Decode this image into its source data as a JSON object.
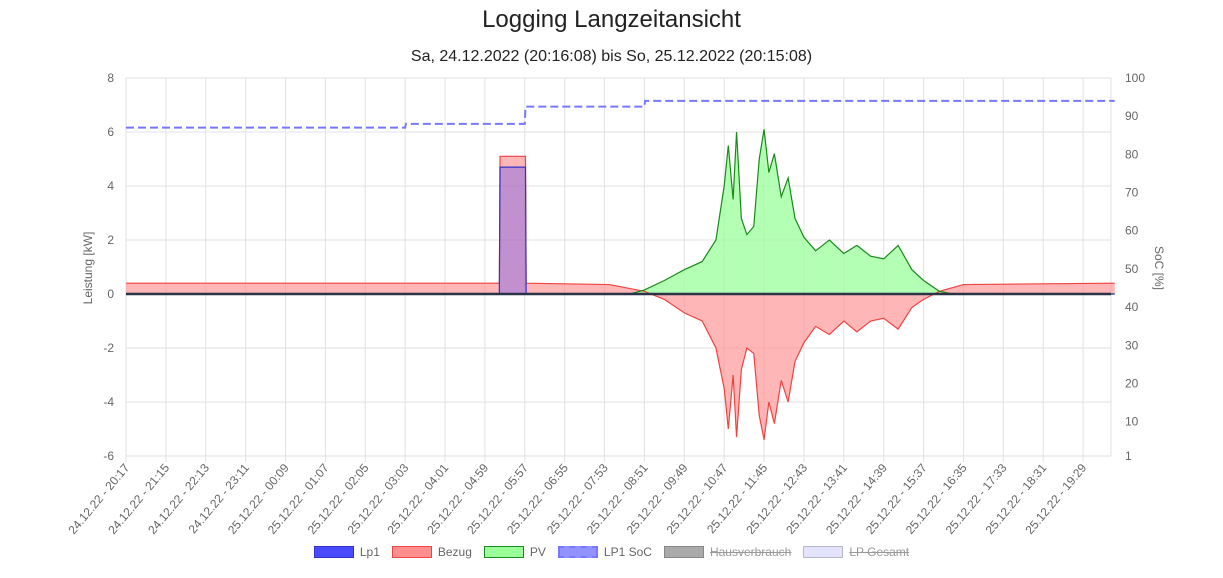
{
  "chart_data": {
    "type": "line",
    "title": "Logging Langzeitansicht",
    "subtitle": "Sa, 24.12.2022 (20:16:08) bis So, 25.12.2022 (20:15:08)",
    "y_axis_left": {
      "label": "Leistung [kW]",
      "range": [
        -6,
        8
      ],
      "ticks": [
        8,
        6,
        4,
        2,
        0,
        -2,
        -4,
        -6
      ]
    },
    "y_axis_right": {
      "label": "SoC [%]",
      "range": [
        1,
        100
      ],
      "ticks": [
        100,
        90,
        80,
        70,
        60,
        50,
        40,
        30,
        20,
        10,
        1
      ]
    },
    "x_axis": {
      "type": "time",
      "tick_labels": [
        "24.12.22 - 20:17",
        "24.12.22 - 21:15",
        "24.12.22 - 22:13",
        "24.12.22 - 23:11",
        "25.12.22 - 00:09",
        "25.12.22 - 01:07",
        "25.12.22 - 02:05",
        "25.12.22 - 03:03",
        "25.12.22 - 04:01",
        "25.12.22 - 04:59",
        "25.12.22 - 05:57",
        "25.12.22 - 06:55",
        "25.12.22 - 07:53",
        "25.12.22 - 08:51",
        "25.12.22 - 09:49",
        "25.12.22 - 10:47",
        "25.12.22 - 11:45",
        "25.12.22 - 12:43",
        "25.12.22 - 13:41",
        "25.12.22 - 14:39",
        "25.12.22 - 15:37",
        "25.12.22 - 16:35",
        "25.12.22 - 17:33",
        "25.12.22 - 18:31",
        "25.12.22 - 19:29"
      ]
    },
    "grid": true,
    "legend_position": "bottom",
    "series": [
      {
        "name": "Lp1",
        "axis": "left",
        "color": "#4a4aff",
        "type": "area",
        "points": [
          [
            "24.12.22 - 20:17",
            0
          ],
          [
            "25.12.22 - 05:20",
            0
          ],
          [
            "25.12.22 - 05:21",
            4.7
          ],
          [
            "25.12.22 - 05:58",
            4.7
          ],
          [
            "25.12.22 - 05:59",
            0
          ],
          [
            "25.12.22 - 20:15",
            0
          ]
        ]
      },
      {
        "name": "Bezug",
        "axis": "left",
        "color": "#ff8f8f",
        "type": "area",
        "points": [
          [
            "24.12.22 - 20:17",
            0.4
          ],
          [
            "25.12.22 - 05:20",
            0.4
          ],
          [
            "25.12.22 - 05:21",
            5.1
          ],
          [
            "25.12.22 - 05:58",
            5.1
          ],
          [
            "25.12.22 - 05:59",
            0.4
          ],
          [
            "25.12.22 - 08:00",
            0.35
          ],
          [
            "25.12.22 - 08:51",
            0.1
          ],
          [
            "25.12.22 - 09:20",
            -0.2
          ],
          [
            "25.12.22 - 09:49",
            -0.7
          ],
          [
            "25.12.22 - 10:15",
            -1.0
          ],
          [
            "25.12.22 - 10:35",
            -2.0
          ],
          [
            "25.12.22 - 10:47",
            -3.5
          ],
          [
            "25.12.22 - 10:53",
            -5.0
          ],
          [
            "25.12.22 - 11:00",
            -3.0
          ],
          [
            "25.12.22 - 11:05",
            -5.3
          ],
          [
            "25.12.22 - 11:12",
            -2.8
          ],
          [
            "25.12.22 - 11:20",
            -2.0
          ],
          [
            "25.12.22 - 11:30",
            -2.2
          ],
          [
            "25.12.22 - 11:38",
            -4.5
          ],
          [
            "25.12.22 - 11:45",
            -5.4
          ],
          [
            "25.12.22 - 11:52",
            -4.0
          ],
          [
            "25.12.22 - 12:00",
            -4.8
          ],
          [
            "25.12.22 - 12:10",
            -3.2
          ],
          [
            "25.12.22 - 12:20",
            -4.0
          ],
          [
            "25.12.22 - 12:30",
            -2.5
          ],
          [
            "25.12.22 - 12:43",
            -1.8
          ],
          [
            "25.12.22 - 13:00",
            -1.2
          ],
          [
            "25.12.22 - 13:20",
            -1.5
          ],
          [
            "25.12.22 - 13:41",
            -1.0
          ],
          [
            "25.12.22 - 14:00",
            -1.4
          ],
          [
            "25.12.22 - 14:20",
            -1.0
          ],
          [
            "25.12.22 - 14:39",
            -0.9
          ],
          [
            "25.12.22 - 15:00",
            -1.3
          ],
          [
            "25.12.22 - 15:20",
            -0.5
          ],
          [
            "25.12.22 - 15:37",
            -0.2
          ],
          [
            "25.12.22 - 16:00",
            0.1
          ],
          [
            "25.12.22 - 16:35",
            0.35
          ],
          [
            "25.12.22 - 20:15",
            0.4
          ]
        ]
      },
      {
        "name": "PV",
        "axis": "left",
        "color": "#99ff99",
        "type": "area",
        "points": [
          [
            "24.12.22 - 20:17",
            0
          ],
          [
            "25.12.22 - 08:30",
            0
          ],
          [
            "25.12.22 - 08:51",
            0.15
          ],
          [
            "25.12.22 - 09:20",
            0.5
          ],
          [
            "25.12.22 - 09:49",
            0.9
          ],
          [
            "25.12.22 - 10:15",
            1.2
          ],
          [
            "25.12.22 - 10:35",
            2.0
          ],
          [
            "25.12.22 - 10:47",
            4.0
          ],
          [
            "25.12.22 - 10:53",
            5.5
          ],
          [
            "25.12.22 - 11:00",
            3.5
          ],
          [
            "25.12.22 - 11:05",
            6.0
          ],
          [
            "25.12.22 - 11:12",
            2.8
          ],
          [
            "25.12.22 - 11:20",
            2.2
          ],
          [
            "25.12.22 - 11:30",
            2.5
          ],
          [
            "25.12.22 - 11:38",
            5.0
          ],
          [
            "25.12.22 - 11:45",
            6.1
          ],
          [
            "25.12.22 - 11:52",
            4.5
          ],
          [
            "25.12.22 - 12:00",
            5.2
          ],
          [
            "25.12.22 - 12:10",
            3.6
          ],
          [
            "25.12.22 - 12:20",
            4.3
          ],
          [
            "25.12.22 - 12:30",
            2.8
          ],
          [
            "25.12.22 - 12:43",
            2.1
          ],
          [
            "25.12.22 - 13:00",
            1.6
          ],
          [
            "25.12.22 - 13:20",
            2.0
          ],
          [
            "25.12.22 - 13:41",
            1.5
          ],
          [
            "25.12.22 - 14:00",
            1.8
          ],
          [
            "25.12.22 - 14:20",
            1.4
          ],
          [
            "25.12.22 - 14:39",
            1.3
          ],
          [
            "25.12.22 - 15:00",
            1.8
          ],
          [
            "25.12.22 - 15:20",
            0.9
          ],
          [
            "25.12.22 - 15:37",
            0.5
          ],
          [
            "25.12.22 - 16:00",
            0.1
          ],
          [
            "25.12.22 - 16:20",
            0
          ],
          [
            "25.12.22 - 20:15",
            0
          ]
        ]
      },
      {
        "name": "LP1 SoC",
        "axis": "right",
        "color": "#7777ff",
        "type": "line",
        "dashed": true,
        "points": [
          [
            "24.12.22 - 20:17",
            87
          ],
          [
            "25.12.22 - 03:03",
            87
          ],
          [
            "25.12.22 - 03:04",
            88
          ],
          [
            "25.12.22 - 05:57",
            88
          ],
          [
            "25.12.22 - 05:58",
            92.5
          ],
          [
            "25.12.22 - 08:51",
            92.5
          ],
          [
            "25.12.22 - 08:52",
            94
          ],
          [
            "25.12.22 - 20:15",
            94
          ]
        ]
      },
      {
        "name": "Hausverbrauch",
        "axis": "left",
        "color": "#aaaaaa",
        "hidden": true,
        "points": []
      },
      {
        "name": "LP Gesamt",
        "axis": "left",
        "color": "#e3e3fb",
        "hidden": true,
        "points": []
      }
    ]
  }
}
